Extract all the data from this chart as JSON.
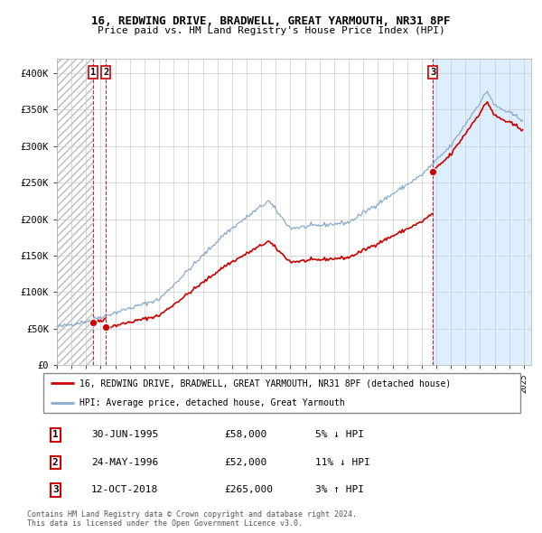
{
  "title1": "16, REDWING DRIVE, BRADWELL, GREAT YARMOUTH, NR31 8PF",
  "title2": "Price paid vs. HM Land Registry's House Price Index (HPI)",
  "xlim_left": 1993.0,
  "xlim_right": 2025.5,
  "ylim_bottom": 0,
  "ylim_top": 420000,
  "yticks": [
    0,
    50000,
    100000,
    150000,
    200000,
    250000,
    300000,
    350000,
    400000
  ],
  "ytick_labels": [
    "£0",
    "£50K",
    "£100K",
    "£150K",
    "£200K",
    "£250K",
    "£300K",
    "£350K",
    "£400K"
  ],
  "xticks": [
    1993,
    1994,
    1995,
    1996,
    1997,
    1998,
    1999,
    2000,
    2001,
    2002,
    2003,
    2004,
    2005,
    2006,
    2007,
    2008,
    2009,
    2010,
    2011,
    2012,
    2013,
    2014,
    2015,
    2016,
    2017,
    2018,
    2019,
    2020,
    2021,
    2022,
    2023,
    2024,
    2025
  ],
  "sale_dates": [
    1995.5,
    1996.37,
    2018.78
  ],
  "sale_prices": [
    58000,
    52000,
    265000
  ],
  "sale_labels": [
    "1",
    "2",
    "3"
  ],
  "sale_line_color": "#cc0000",
  "hpi_line_color": "#88aacc",
  "sale_marker_color": "#cc0000",
  "vline_color": "#cc0000",
  "legend_box_color": "#cc0000",
  "table_border_color": "#cc0000",
  "hatch_color": "#bbbbbb",
  "shade_color": "#ddeeff",
  "legend1": "16, REDWING DRIVE, BRADWELL, GREAT YARMOUTH, NR31 8PF (detached house)",
  "legend2": "HPI: Average price, detached house, Great Yarmouth",
  "transactions": [
    {
      "num": "1",
      "date": "30-JUN-1995",
      "price": "£58,000",
      "hpi": "5% ↓ HPI"
    },
    {
      "num": "2",
      "date": "24-MAY-1996",
      "price": "£52,000",
      "hpi": "11% ↓ HPI"
    },
    {
      "num": "3",
      "date": "12-OCT-2018",
      "price": "£265,000",
      "hpi": "3% ↑ HPI"
    }
  ],
  "footnote1": "Contains HM Land Registry data © Crown copyright and database right 2024.",
  "footnote2": "This data is licensed under the Open Government Licence v3.0."
}
